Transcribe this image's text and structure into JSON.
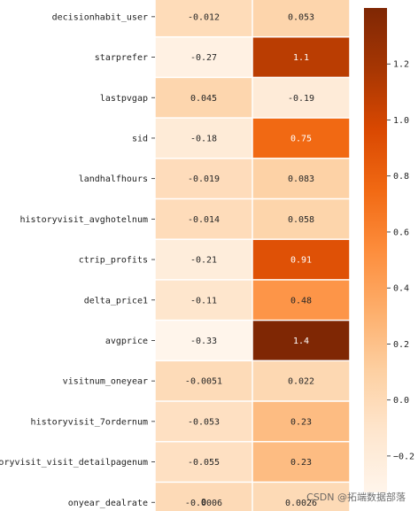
{
  "chart_data": {
    "type": "heatmap",
    "rows": [
      "decisionhabit_user",
      "starprefer",
      "lastpvgap",
      "sid",
      "landhalfhours",
      "historyvisit_avghotelnum",
      "ctrip_profits",
      "delta_price1",
      "avgprice",
      "visitnum_oneyear",
      "historyvisit_7ordernum",
      "historyvisit_visit_detailpagenum",
      "onyear_dealrate"
    ],
    "columns": [
      "0",
      ""
    ],
    "values": [
      [
        -0.012,
        0.053
      ],
      [
        -0.27,
        1.1
      ],
      [
        0.045,
        -0.19
      ],
      [
        -0.18,
        0.75
      ],
      [
        -0.019,
        0.083
      ],
      [
        -0.014,
        0.058
      ],
      [
        -0.21,
        0.91
      ],
      [
        -0.11,
        0.48
      ],
      [
        -0.33,
        1.4
      ],
      [
        -0.0051,
        0.022
      ],
      [
        -0.053,
        0.23
      ],
      [
        -0.055,
        0.23
      ],
      [
        -0.0006,
        0.0026
      ]
    ],
    "annotations": [
      [
        "-0.012",
        "0.053"
      ],
      [
        "-0.27",
        "1.1"
      ],
      [
        "0.045",
        "-0.19"
      ],
      [
        "-0.18",
        "0.75"
      ],
      [
        "-0.019",
        "0.083"
      ],
      [
        "-0.014",
        "0.058"
      ],
      [
        "-0.21",
        "0.91"
      ],
      [
        "-0.11",
        "0.48"
      ],
      [
        "-0.33",
        "1.4"
      ],
      [
        "-0.0051",
        "0.022"
      ],
      [
        "-0.053",
        "0.23"
      ],
      [
        "-0.055",
        "0.23"
      ],
      [
        "-0.0006",
        "0.0026"
      ]
    ],
    "colorbar": {
      "colormap": "Oranges",
      "vmin": -0.33,
      "vmax": 1.4,
      "ticks": [
        -0.2,
        0.0,
        0.2,
        0.4,
        0.6,
        0.8,
        1.0,
        1.2
      ],
      "tick_labels": [
        "−0.2",
        "0.0",
        "0.2",
        "0.4",
        "0.6",
        "0.8",
        "1.0",
        "1.2"
      ]
    },
    "title": "",
    "xlabel": "",
    "ylabel": "",
    "grid": false
  },
  "watermark": "CSDN @拓端数据部落"
}
